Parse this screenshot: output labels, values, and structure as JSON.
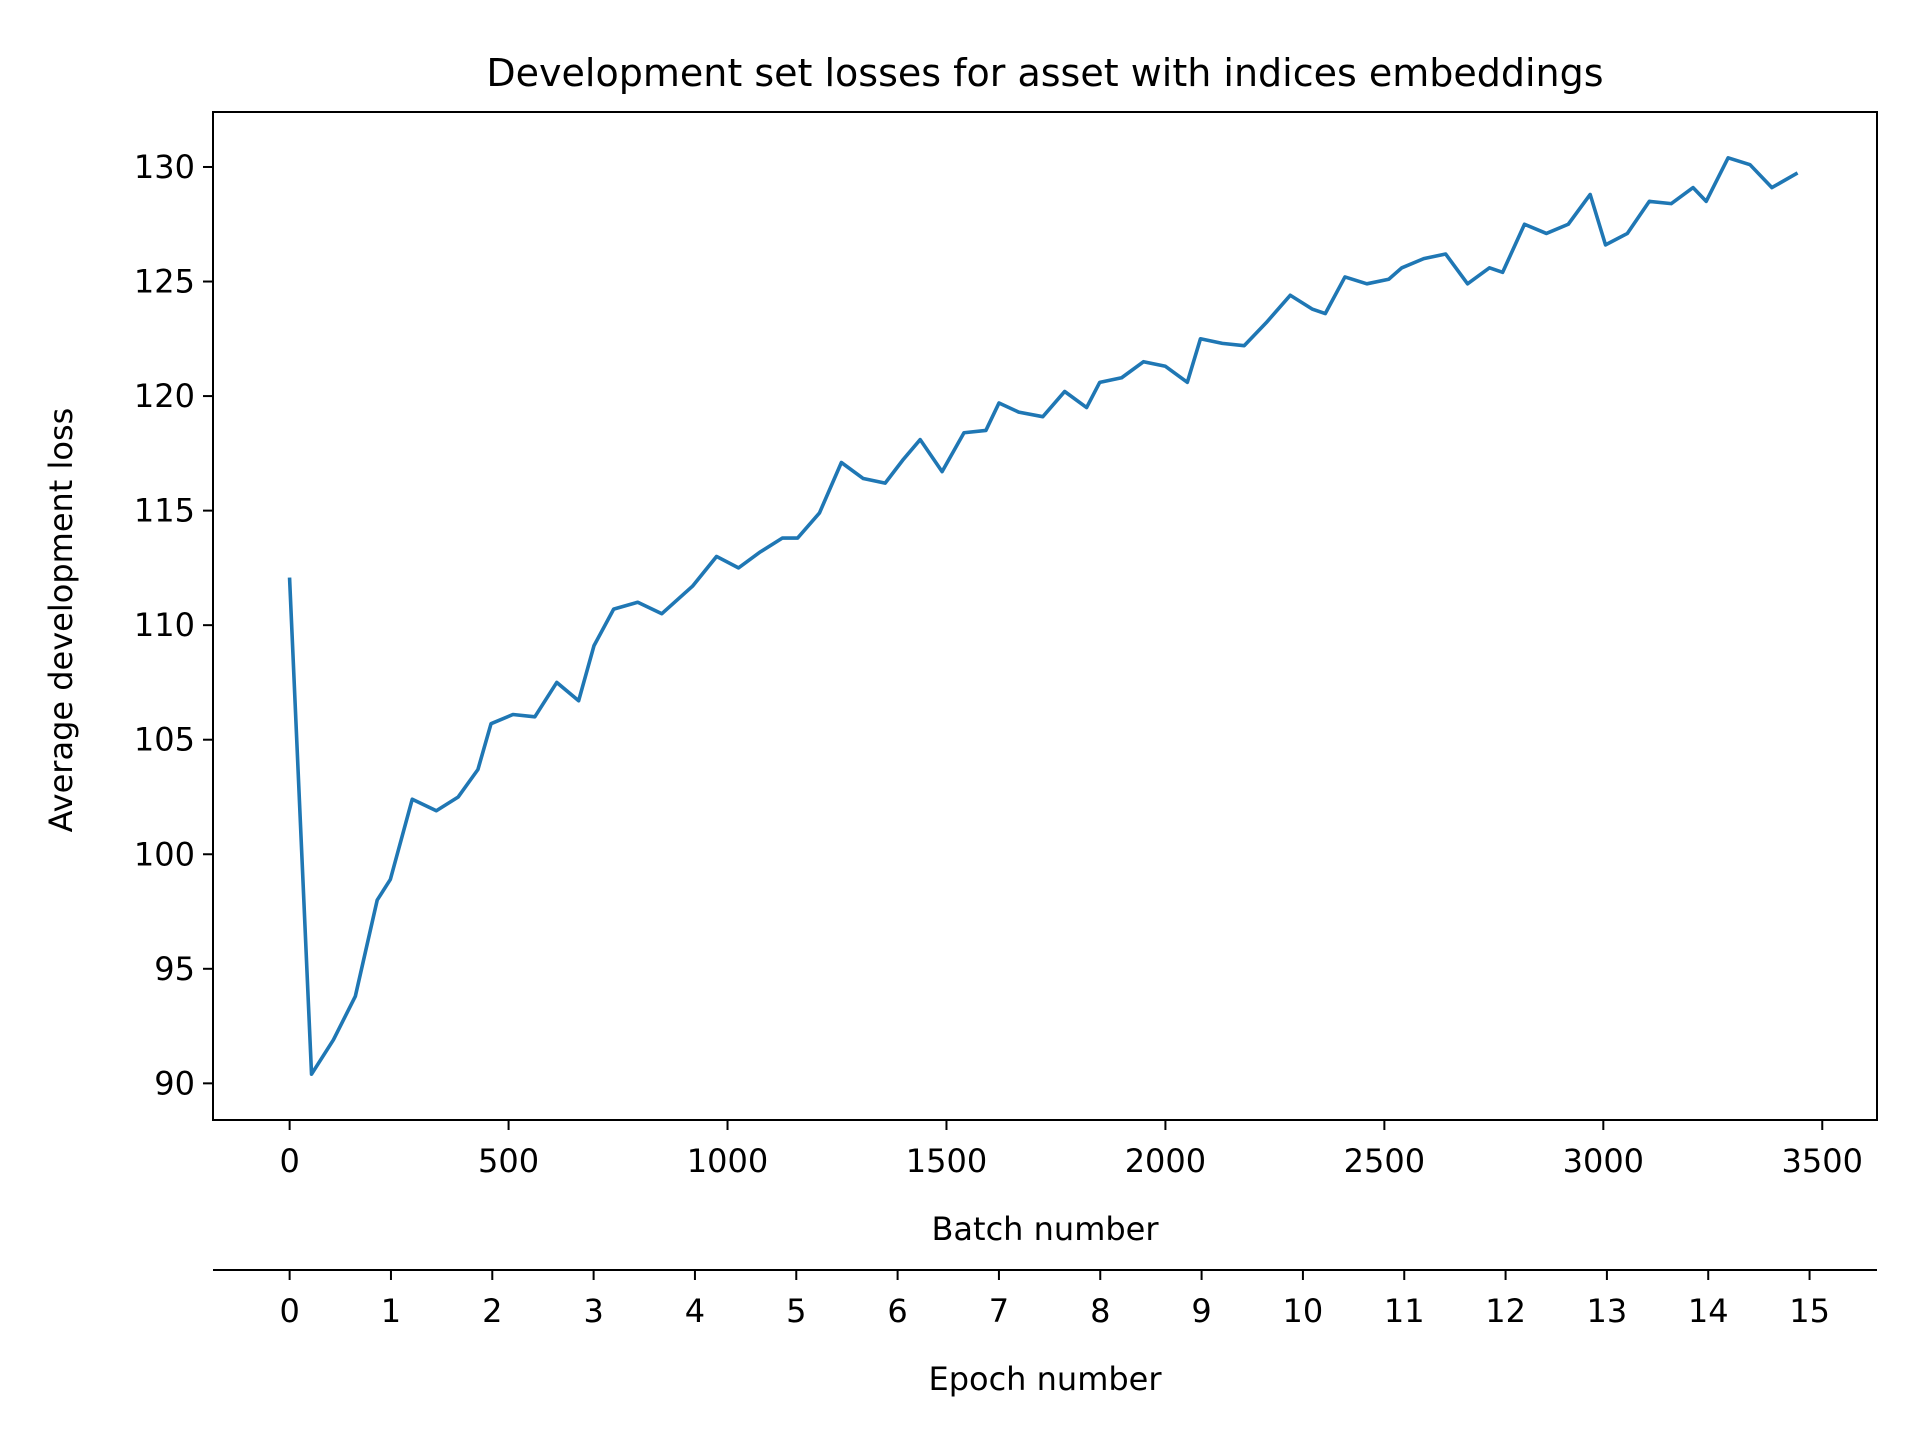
{
  "chart_data": {
    "type": "line",
    "title": "Development set losses for asset with indices embeddings",
    "xlabel": "Batch number",
    "ylabel": "Average development loss",
    "secondary_xlabel": "Epoch number",
    "xlim": [
      -175,
      3625
    ],
    "ylim": [
      88.4,
      132.4
    ],
    "xticks": [
      0,
      500,
      1000,
      1500,
      2000,
      2500,
      3000,
      3500
    ],
    "yticks": [
      90,
      95,
      100,
      105,
      110,
      115,
      120,
      125,
      130
    ],
    "epoch_ticks": [
      0,
      1,
      2,
      3,
      4,
      5,
      6,
      7,
      8,
      9,
      10,
      11,
      12,
      13,
      14,
      15
    ],
    "batches_per_epoch": 231.4,
    "grid": false,
    "series_color": "#1f77b4",
    "series": [
      {
        "x": [
          0,
          50,
          100,
          150,
          200,
          230,
          280,
          335,
          385,
          430,
          460,
          510,
          560,
          610,
          660,
          695,
          740,
          795,
          850,
          920,
          975,
          1025,
          1075,
          1125,
          1160,
          1210,
          1260,
          1310,
          1360,
          1400,
          1440,
          1490,
          1540,
          1590,
          1620,
          1665,
          1720,
          1770,
          1820,
          1850,
          1900,
          1950,
          2000,
          2050,
          2080,
          2130,
          2180,
          2230,
          2285,
          2335,
          2365,
          2410,
          2460,
          2510,
          2540,
          2590,
          2640,
          2690,
          2740,
          2770,
          2820,
          2870,
          2920,
          2970,
          3005,
          3055,
          3105,
          3155,
          3205,
          3235,
          3285,
          3335,
          3385,
          3440
        ],
        "y": [
          112.0,
          90.4,
          91.9,
          93.8,
          98.0,
          98.9,
          102.4,
          101.9,
          102.5,
          103.7,
          105.7,
          106.1,
          106.0,
          107.5,
          106.7,
          109.1,
          110.7,
          111.0,
          110.5,
          111.7,
          113.0,
          112.5,
          113.2,
          113.8,
          113.8,
          114.9,
          117.1,
          116.4,
          116.2,
          117.2,
          118.1,
          116.7,
          118.4,
          118.5,
          119.7,
          119.3,
          119.1,
          120.2,
          119.5,
          120.6,
          120.8,
          121.5,
          121.3,
          120.6,
          122.5,
          122.3,
          122.2,
          123.2,
          124.4,
          123.8,
          123.6,
          125.2,
          124.9,
          125.1,
          125.6,
          126.0,
          126.2,
          124.9,
          125.6,
          125.4,
          127.5,
          127.1,
          127.5,
          128.8,
          126.6,
          127.1,
          128.5,
          128.4,
          129.1,
          128.5,
          130.4,
          130.1,
          129.1,
          129.7
        ]
      }
    ]
  }
}
